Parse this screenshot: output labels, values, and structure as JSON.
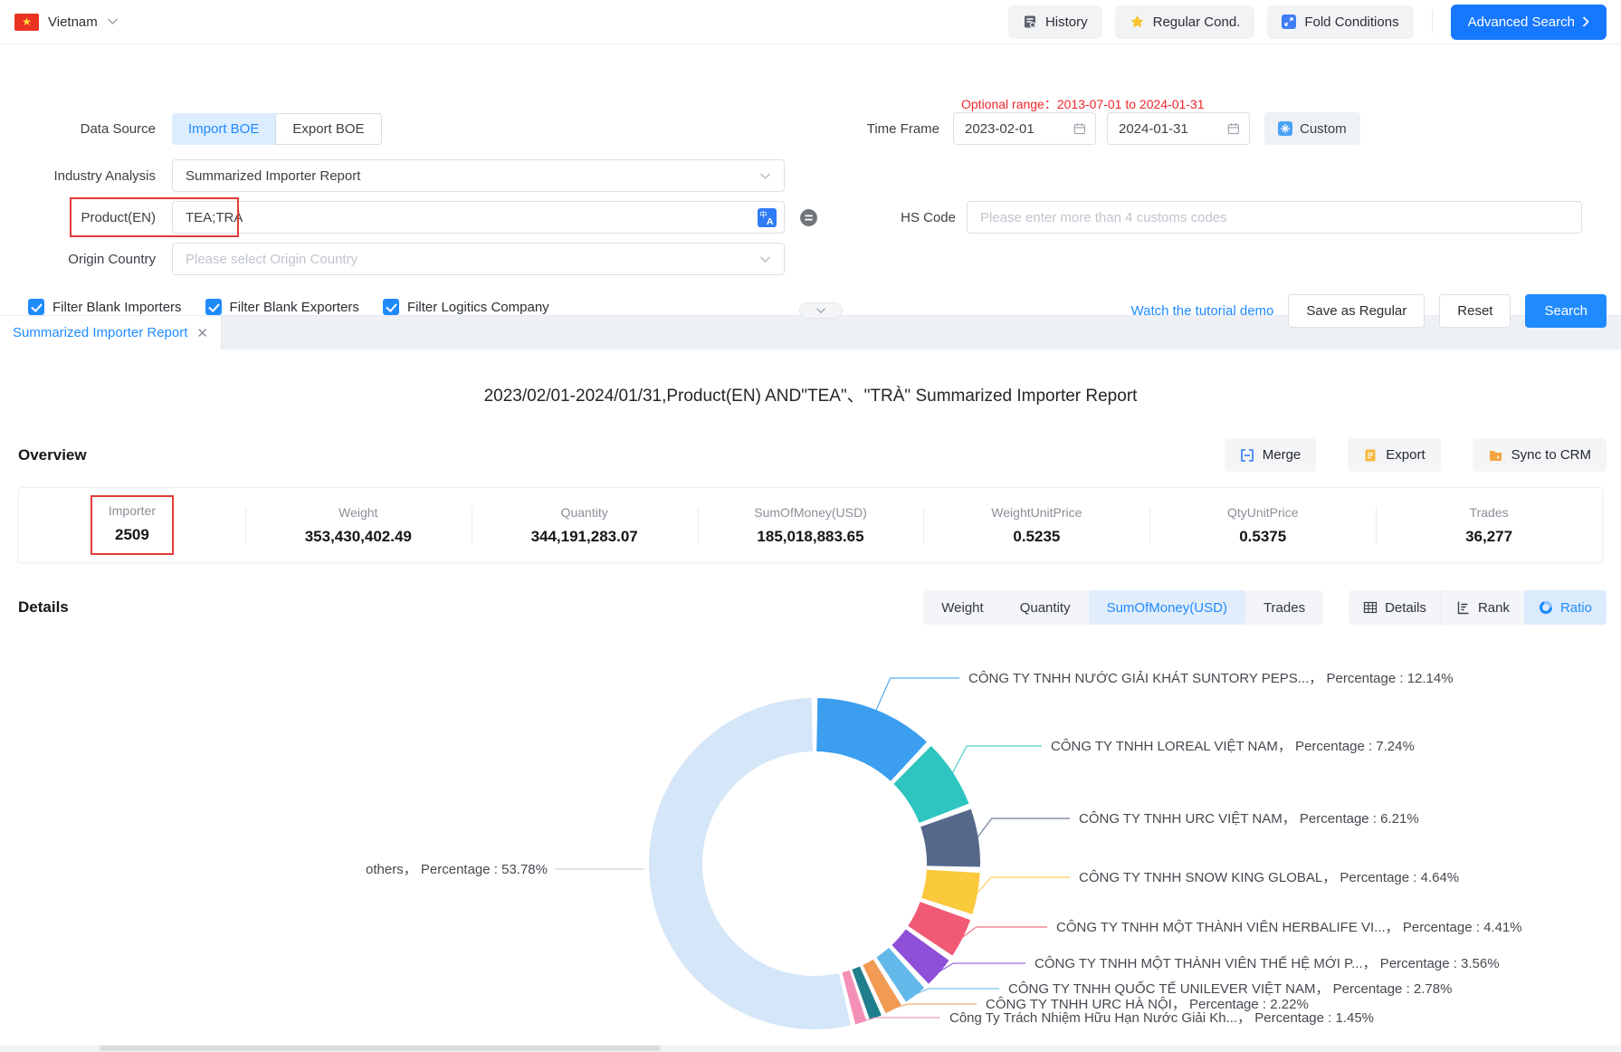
{
  "header": {
    "country": "Vietnam",
    "history_label": "History",
    "regular_label": "Regular Cond.",
    "fold_label": "Fold Conditions",
    "advanced_label": "Advanced Search"
  },
  "form": {
    "data_source": {
      "label": "Data Source",
      "options": [
        "Import BOE",
        "Export BOE"
      ],
      "selected": "Import BOE"
    },
    "time_frame": {
      "label": "Time Frame",
      "optional_range": "Optional range：2013-07-01 to 2024-01-31",
      "start": "2023-02-01",
      "end": "2024-01-31",
      "custom_label": "Custom"
    },
    "industry": {
      "label": "Industry Analysis",
      "value": "Summarized Importer Report"
    },
    "product": {
      "label": "Product(EN)",
      "value": "TEA;TRÀ"
    },
    "hs_code": {
      "label": "HS Code",
      "placeholder": "Please enter more than 4 customs codes"
    },
    "origin": {
      "label": "Origin Country",
      "placeholder": "Please select Origin Country"
    },
    "checkboxes": [
      {
        "label": "Filter Blank Importers",
        "checked": true
      },
      {
        "label": "Filter Blank Exporters",
        "checked": true
      },
      {
        "label": "Filter Logitics Company",
        "checked": true
      }
    ],
    "actions": {
      "tutorial": "Watch the tutorial demo",
      "save": "Save as Regular",
      "reset": "Reset",
      "search": "Search"
    }
  },
  "tab": {
    "title": "Summarized Importer Report"
  },
  "report": {
    "title": "2023/02/01-2024/01/31,Product(EN) AND\"TEA\"、\"TRÀ\" Summarized Importer Report",
    "overview": {
      "heading": "Overview",
      "merge_label": "Merge",
      "export_label": "Export",
      "sync_label": "Sync to CRM",
      "stats": [
        {
          "label": "Importer",
          "value": "2509",
          "highlighted": true
        },
        {
          "label": "Weight",
          "value": "353,430,402.49"
        },
        {
          "label": "Quantity",
          "value": "344,191,283.07"
        },
        {
          "label": "SumOfMoney(USD)",
          "value": "185,018,883.65"
        },
        {
          "label": "WeightUnitPrice",
          "value": "0.5235"
        },
        {
          "label": "QtyUnitPrice",
          "value": "0.5375"
        },
        {
          "label": "Trades",
          "value": "36,277"
        }
      ]
    },
    "details": {
      "heading": "Details",
      "metric_tabs": [
        "Weight",
        "Quantity",
        "SumOfMoney(USD)",
        "Trades"
      ],
      "active_metric": "SumOfMoney(USD)",
      "view_tabs": [
        "Details",
        "Rank",
        "Ratio"
      ],
      "active_view": "Ratio"
    }
  },
  "chart_data": {
    "type": "pie",
    "donut": true,
    "title": "",
    "legend_position": "none",
    "percentage_label": "Percentage",
    "segments": [
      {
        "name": "CÔNG TY TNHH NƯỚC GIẢI KHÁT SUNTORY PEPS...",
        "percentage": 12.14,
        "color": "#3b9eef"
      },
      {
        "name": "CÔNG TY TNHH LOREAL VIỆT NAM",
        "percentage": 7.24,
        "color": "#2ec5c0"
      },
      {
        "name": "CÔNG TY TNHH URC VIỆT NAM",
        "percentage": 6.21,
        "color": "#56688a"
      },
      {
        "name": "CÔNG TY TNHH SNOW KING GLOBAL",
        "percentage": 4.64,
        "color": "#fac93c"
      },
      {
        "name": "CÔNG TY TNHH MỘT THÀNH VIÊN HERBALIFE VI...",
        "percentage": 4.41,
        "color": "#f05a74"
      },
      {
        "name": "CÔNG TY TNHH MỘT THÀNH VIÊN THẾ HỆ MỚI P...",
        "percentage": 3.56,
        "color": "#8f4fd8"
      },
      {
        "name": "CÔNG TY TNHH QUỐC TẾ UNILEVER VIỆT NAM",
        "percentage": 2.78,
        "color": "#63b8ea"
      },
      {
        "name": "CÔNG TY TNHH URC HÀ NỘI",
        "percentage": 2.22,
        "color": "#f19a53"
      },
      {
        "name": "",
        "percentage": 1.57,
        "color": "#1f7e8c"
      },
      {
        "name": "Công Ty Trách Nhiệm Hữu Hạn Nước Giải Kh...",
        "percentage": 1.45,
        "color": "#f48fb5"
      },
      {
        "name": "others",
        "percentage": 53.78,
        "color": "#d4e6f8"
      }
    ]
  }
}
